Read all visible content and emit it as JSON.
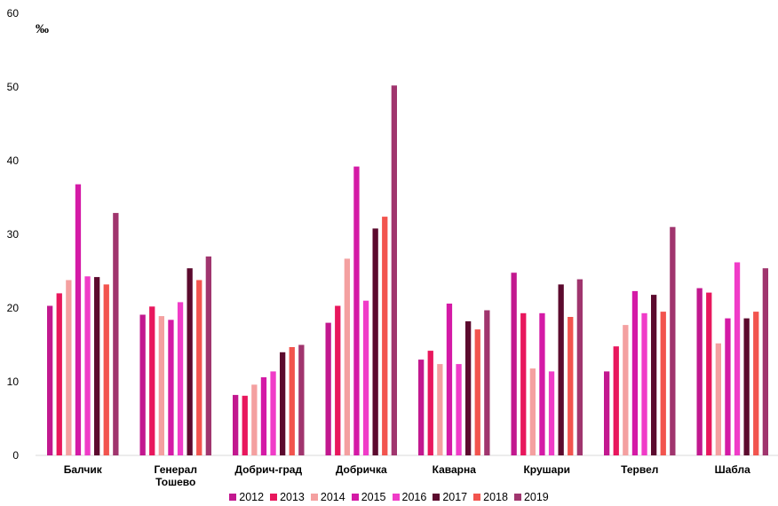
{
  "chart_data": {
    "type": "bar",
    "ylabel": "‰",
    "ylim": [
      0,
      60
    ],
    "yticks": [
      0,
      10,
      20,
      30,
      40,
      50,
      60
    ],
    "grid": false,
    "legend_position": "bottom",
    "categories": [
      [
        "Балчик"
      ],
      [
        "Генерал",
        "Тошево"
      ],
      [
        "Добрич-град"
      ],
      [
        "Добричка"
      ],
      [
        "Каварна"
      ],
      [
        "Крушари"
      ],
      [
        "Тервел"
      ],
      [
        "Шабла"
      ]
    ],
    "series": [
      {
        "name": "2012",
        "color": "#c2188f",
        "values": [
          20.3,
          19.1,
          8.2,
          18.0,
          13.0,
          24.8,
          11.4,
          22.7
        ]
      },
      {
        "name": "2013",
        "color": "#e8175d",
        "values": [
          22.0,
          20.2,
          8.1,
          20.3,
          14.2,
          19.3,
          14.8,
          22.1
        ]
      },
      {
        "name": "2014",
        "color": "#f4a0a0",
        "values": [
          23.8,
          18.9,
          9.6,
          26.7,
          12.4,
          11.8,
          17.7,
          15.2
        ]
      },
      {
        "name": "2015",
        "color": "#d41aa6",
        "values": [
          36.8,
          18.4,
          10.6,
          39.2,
          20.6,
          19.3,
          22.3,
          18.6
        ]
      },
      {
        "name": "2016",
        "color": "#f03cc8",
        "values": [
          24.3,
          20.8,
          11.4,
          21.0,
          12.4,
          11.4,
          19.3,
          26.2
        ]
      },
      {
        "name": "2017",
        "color": "#5c0a2e",
        "values": [
          24.2,
          25.4,
          14.0,
          30.8,
          18.2,
          23.2,
          21.8,
          18.6
        ]
      },
      {
        "name": "2018",
        "color": "#f2544e",
        "values": [
          23.2,
          23.8,
          14.7,
          32.4,
          17.1,
          18.8,
          19.5,
          19.5
        ]
      },
      {
        "name": "2019",
        "color": "#a0356e",
        "values": [
          32.9,
          27.0,
          15.0,
          50.2,
          19.7,
          23.9,
          31.0,
          25.4
        ]
      }
    ]
  }
}
